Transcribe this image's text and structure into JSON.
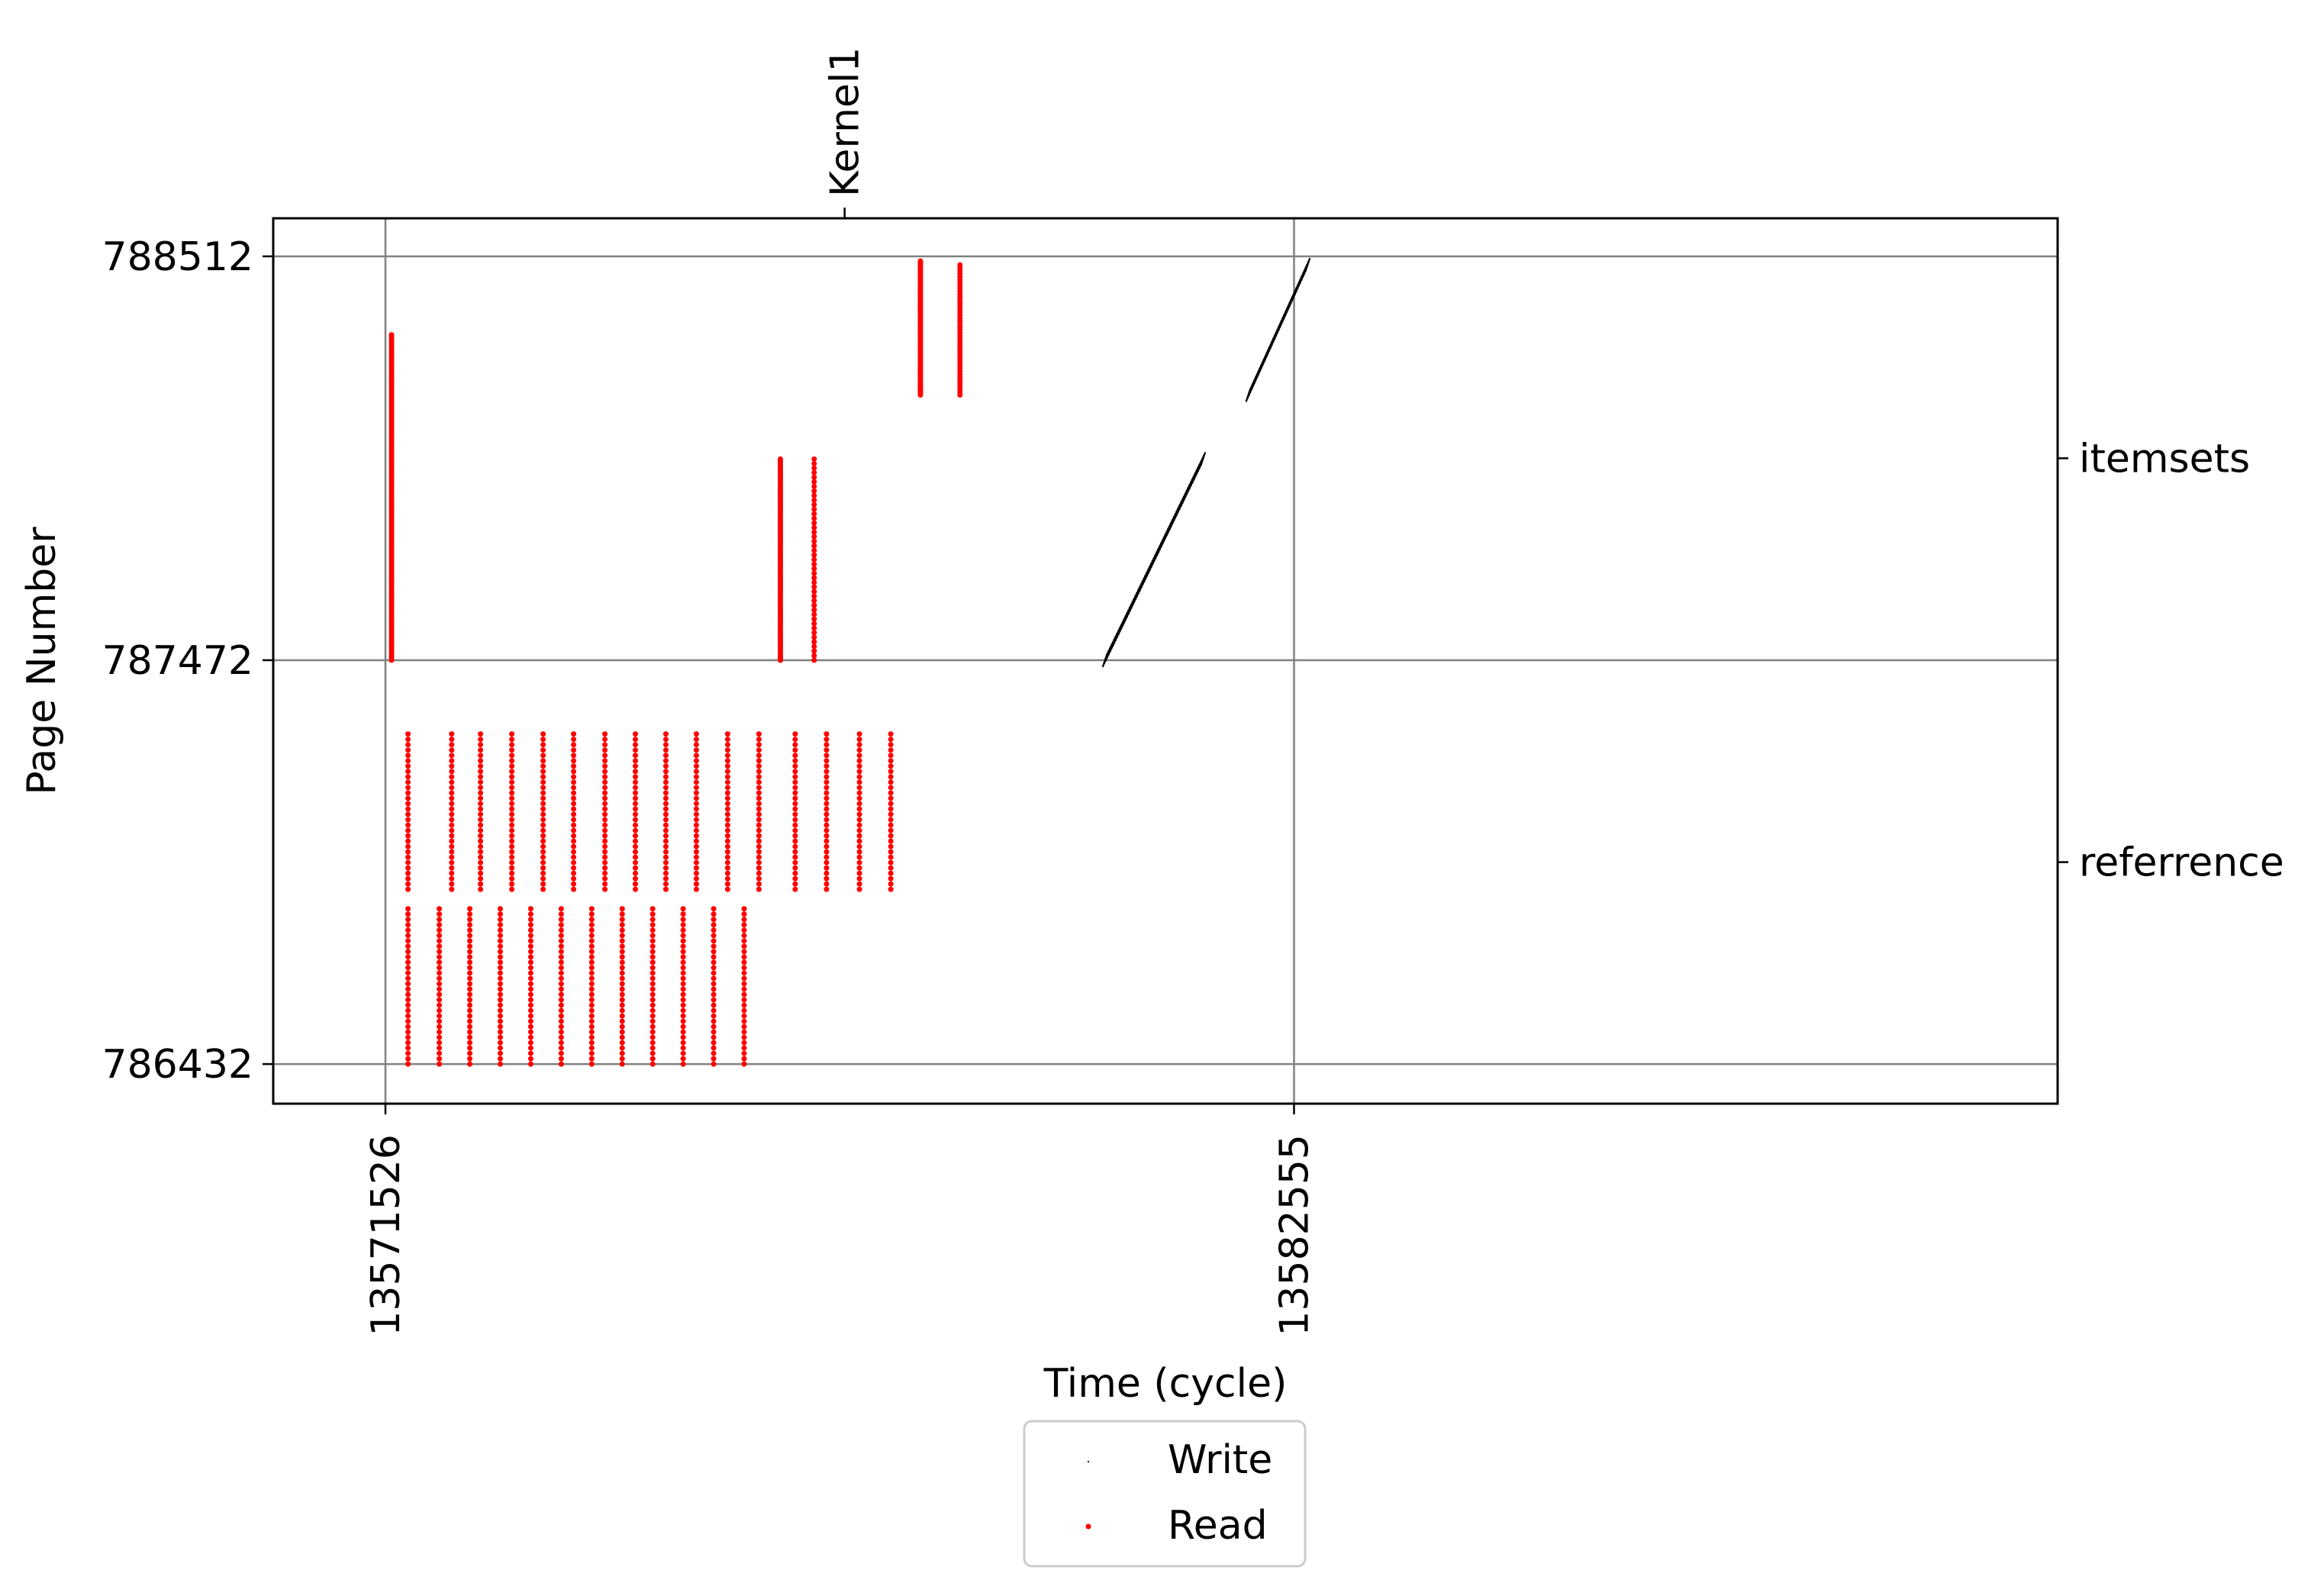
{
  "chart_data": {
    "type": "scatter",
    "xlabel": "Time (cycle)",
    "ylabel": "Page Number",
    "xlim": [
      13570164,
      13591824
    ],
    "ylim": [
      786330,
      788610
    ],
    "x_ticks": [
      {
        "value": 13571526,
        "label": "13571526"
      },
      {
        "value": 13582555,
        "label": "13582555"
      }
    ],
    "y_ticks": [
      {
        "value": 786432,
        "label": "786432"
      },
      {
        "value": 787472,
        "label": "787472"
      },
      {
        "value": 788512,
        "label": "788512"
      }
    ],
    "right_ticks": [
      {
        "value": 786952,
        "label": "referrence"
      },
      {
        "value": 787992,
        "label": "itemsets"
      }
    ],
    "top_ticks": [
      {
        "value": 13577100,
        "label": "Kernel1"
      }
    ],
    "grid": true,
    "legend": {
      "placement": "bottom-center",
      "entries": [
        "Write",
        "Read"
      ]
    },
    "series": [
      {
        "name": "Write",
        "color": "#000000",
        "marker": "dash",
        "columns": [
          {
            "x": [
              13580260,
              13581450
            ],
            "y": [
              787472,
              787990
            ],
            "n": 70
          },
          {
            "x": [
              13582000,
              13582720
            ],
            "y": [
              788155,
              788490
            ],
            "n": 45
          }
        ]
      },
      {
        "name": "Read",
        "color": "#ff0000",
        "marker": "dot",
        "columns": [
          {
            "x": [
              13571600,
              13571600
            ],
            "y": [
              787472,
              788310
            ],
            "n": 150
          },
          {
            "x": [
              13571800,
              13571800
            ],
            "y": [
              786432,
              786832
            ],
            "n": 30
          },
          {
            "x": [
              13571800,
              13571800
            ],
            "y": [
              786882,
              787282
            ],
            "n": 30
          },
          {
            "x": [
              13572180,
              13572180
            ],
            "y": [
              786432,
              786832
            ],
            "n": 30
          },
          {
            "x": [
              13572330,
              13572330
            ],
            "y": [
              786882,
              787282
            ],
            "n": 30
          },
          {
            "x": [
              13572550,
              13572550
            ],
            "y": [
              786432,
              786832
            ],
            "n": 30
          },
          {
            "x": [
              13572680,
              13572680
            ],
            "y": [
              786882,
              787282
            ],
            "n": 30
          },
          {
            "x": [
              13572920,
              13572920
            ],
            "y": [
              786432,
              786832
            ],
            "n": 30
          },
          {
            "x": [
              13573060,
              13573060
            ],
            "y": [
              786882,
              787282
            ],
            "n": 30
          },
          {
            "x": [
              13573290,
              13573290
            ],
            "y": [
              786432,
              786832
            ],
            "n": 30
          },
          {
            "x": [
              13573440,
              13573440
            ],
            "y": [
              786882,
              787282
            ],
            "n": 30
          },
          {
            "x": [
              13573660,
              13573660
            ],
            "y": [
              786432,
              786832
            ],
            "n": 30
          },
          {
            "x": [
              13573810,
              13573810
            ],
            "y": [
              786882,
              787282
            ],
            "n": 30
          },
          {
            "x": [
              13574030,
              13574030
            ],
            "y": [
              786432,
              786832
            ],
            "n": 30
          },
          {
            "x": [
              13574190,
              13574190
            ],
            "y": [
              786882,
              787282
            ],
            "n": 30
          },
          {
            "x": [
              13574400,
              13574400
            ],
            "y": [
              786432,
              786832
            ],
            "n": 30
          },
          {
            "x": [
              13574560,
              13574560
            ],
            "y": [
              786882,
              787282
            ],
            "n": 30
          },
          {
            "x": [
              13574770,
              13574770
            ],
            "y": [
              786432,
              786832
            ],
            "n": 30
          },
          {
            "x": [
              13574930,
              13574930
            ],
            "y": [
              786882,
              787282
            ],
            "n": 30
          },
          {
            "x": [
              13575140,
              13575140
            ],
            "y": [
              786432,
              786832
            ],
            "n": 30
          },
          {
            "x": [
              13575300,
              13575300
            ],
            "y": [
              786882,
              787282
            ],
            "n": 30
          },
          {
            "x": [
              13575510,
              13575510
            ],
            "y": [
              786432,
              786832
            ],
            "n": 30
          },
          {
            "x": [
              13575680,
              13575680
            ],
            "y": [
              786882,
              787282
            ],
            "n": 30
          },
          {
            "x": [
              13575880,
              13575880
            ],
            "y": [
              786432,
              786832
            ],
            "n": 30
          },
          {
            "x": [
              13576060,
              13576060
            ],
            "y": [
              786882,
              787282
            ],
            "n": 30
          },
          {
            "x": [
              13576500,
              13576500
            ],
            "y": [
              786882,
              787282
            ],
            "n": 30
          },
          {
            "x": [
              13576880,
              13576880
            ],
            "y": [
              786882,
              787282
            ],
            "n": 30
          },
          {
            "x": [
              13577280,
              13577280
            ],
            "y": [
              786882,
              787282
            ],
            "n": 30
          },
          {
            "x": [
              13577660,
              13577660
            ],
            "y": [
              786882,
              787282
            ],
            "n": 30
          },
          {
            "x": [
              13576320,
              13576320
            ],
            "y": [
              787472,
              787990
            ],
            "n": 110
          },
          {
            "x": [
              13576730,
              13576730
            ],
            "y": [
              787472,
              787990
            ],
            "n": 45
          },
          {
            "x": [
              13578020,
              13578020
            ],
            "y": [
              788155,
              788500
            ],
            "n": 80
          },
          {
            "x": [
              13578500,
              13578500
            ],
            "y": [
              788155,
              788490
            ],
            "n": 45
          }
        ]
      }
    ]
  }
}
